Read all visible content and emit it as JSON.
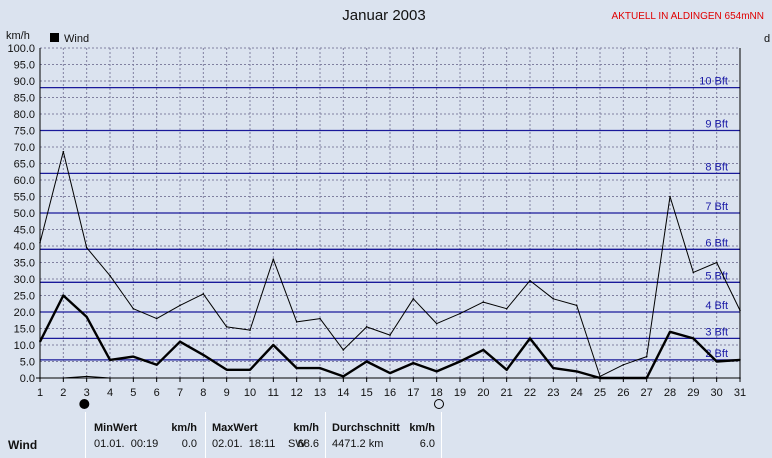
{
  "chart_data": {
    "type": "line",
    "title": "Januar 2003",
    "station_label": "AKTUELL IN ALDINGEN 654mNN",
    "ylabel": "km/h",
    "y2label": "d",
    "ylim": [
      0,
      100
    ],
    "y_ticks": [
      "0.0",
      "5.0",
      "10.0",
      "15.0",
      "20.0",
      "25.0",
      "30.0",
      "35.0",
      "40.0",
      "45.0",
      "50.0",
      "55.0",
      "60.0",
      "65.0",
      "70.0",
      "75.0",
      "80.0",
      "85.0",
      "90.0",
      "95.0",
      "100.0"
    ],
    "x": [
      1,
      2,
      3,
      4,
      5,
      6,
      7,
      8,
      9,
      10,
      11,
      12,
      13,
      14,
      15,
      16,
      17,
      18,
      19,
      20,
      21,
      22,
      23,
      24,
      25,
      26,
      27,
      28,
      29,
      30,
      31
    ],
    "legend": [
      {
        "name": "Wind",
        "color": "#000000"
      }
    ],
    "series": [
      {
        "name": "Wind",
        "role": "mean",
        "values": [
          11,
          25,
          18.5,
          5.5,
          6.5,
          4,
          11,
          7,
          2.5,
          2.5,
          10,
          3,
          3,
          0.5,
          5,
          1.5,
          4.5,
          2,
          5,
          8.5,
          2.5,
          12,
          3,
          2,
          0,
          0,
          0,
          14,
          12,
          5,
          5.5
        ]
      },
      {
        "role": "max",
        "values": [
          41,
          68.6,
          39.5,
          31,
          21,
          18,
          22,
          25.5,
          15.5,
          14.5,
          36,
          17,
          18,
          8.5,
          15.5,
          13,
          24,
          16.5,
          19.5,
          23,
          21,
          29.5,
          24,
          22,
          0.5,
          4,
          6.5,
          55,
          32,
          35,
          20.5
        ]
      },
      {
        "role": "direction",
        "values": [
          0,
          0,
          0.5,
          0,
          0,
          0,
          0,
          0,
          0,
          0,
          0,
          0,
          0,
          0,
          0,
          0,
          0,
          0,
          0,
          0,
          0,
          0,
          0,
          0,
          0,
          0,
          0,
          0,
          0,
          0,
          0
        ]
      }
    ],
    "beaufort_lines": [
      {
        "label": "2 Bft",
        "value": 5.5
      },
      {
        "label": "3 Bft",
        "value": 12
      },
      {
        "label": "4 Bft",
        "value": 20
      },
      {
        "label": "5 Bft",
        "value": 29
      },
      {
        "label": "6 Bft",
        "value": 39
      },
      {
        "label": "7 Bft",
        "value": 50
      },
      {
        "label": "8 Bft",
        "value": 62
      },
      {
        "label": "9 Bft",
        "value": 75
      },
      {
        "label": "10 Bft",
        "value": 88
      }
    ],
    "moon_markers": [
      {
        "day": 2.9,
        "phase": "new"
      },
      {
        "day": 18.1,
        "phase": "full"
      }
    ],
    "colors": {
      "grid": "#8080a0",
      "beaufort": "#1a1a9a",
      "axis": "#000000",
      "plot_bg": "#dbe3ef"
    },
    "grid": true
  },
  "stats": {
    "row_label": "Wind",
    "min": {
      "header": "MinWert",
      "unit": "km/h",
      "datetime": "01.01.  00:19",
      "value": "0.0"
    },
    "max": {
      "header": "MaxWert",
      "unit": "km/h",
      "datetime": "02.01.  18:11",
      "dir": "SW",
      "value": "68.6"
    },
    "avg": {
      "header": "Durchschnitt",
      "unit": "km/h",
      "distance": "4471.2 km",
      "value": "6.0"
    }
  }
}
